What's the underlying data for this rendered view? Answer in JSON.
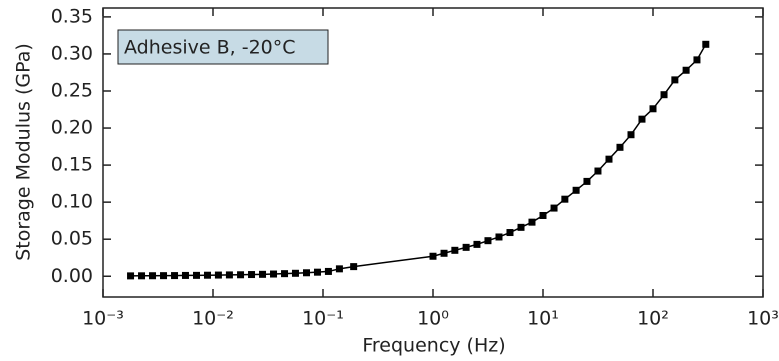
{
  "chart_data": {
    "type": "line",
    "annotation": "Adhesive B, -20°C",
    "x_label": "Frequency (Hz)",
    "y_label": "Storage Modulus (GPa)",
    "x_scale": "log",
    "x": [
      0.00178,
      0.00224,
      0.00282,
      0.00355,
      0.00447,
      0.00562,
      0.00708,
      0.00891,
      0.0112,
      0.0141,
      0.0178,
      0.0224,
      0.0282,
      0.0355,
      0.0447,
      0.0562,
      0.0708,
      0.0891,
      0.112,
      0.141,
      0.19,
      1,
      1.26,
      1.58,
      2,
      2.51,
      3.16,
      3.98,
      5.01,
      6.31,
      7.94,
      10,
      12.6,
      15.8,
      20,
      25.1,
      31.6,
      39.8,
      50.1,
      63.1,
      79.4,
      100,
      126,
      158,
      200,
      251,
      302
    ],
    "series": [
      {
        "color": "#000000",
        "values": [
          0.0005,
          0.0006,
          0.0007,
          0.0008,
          0.0009,
          0.0011,
          0.0012,
          0.0014,
          0.0016,
          0.0018,
          0.002,
          0.0023,
          0.0026,
          0.003,
          0.0035,
          0.004,
          0.0047,
          0.0055,
          0.0065,
          0.01,
          0.013,
          0.027,
          0.031,
          0.035,
          0.039,
          0.043,
          0.048,
          0.053,
          0.059,
          0.066,
          0.073,
          0.082,
          0.092,
          0.104,
          0.116,
          0.128,
          0.142,
          0.158,
          0.174,
          0.191,
          0.212,
          0.226,
          0.245,
          0.265,
          0.278,
          0.292,
          0.313
        ]
      }
    ],
    "xlim": [
      0.001,
      1000
    ],
    "xticks": [
      {
        "value": 0.001,
        "label": "10⁻³"
      },
      {
        "value": 0.01,
        "label": "10⁻²"
      },
      {
        "value": 0.1,
        "label": "10⁻¹"
      },
      {
        "value": 1,
        "label": "10⁰"
      },
      {
        "value": 10,
        "label": "10¹"
      },
      {
        "value": 100,
        "label": "10²"
      },
      {
        "value": 1000,
        "label": "10³"
      }
    ],
    "ylim": [
      -0.028,
      0.362
    ],
    "yticks": [
      {
        "value": 0,
        "label": "0.00"
      },
      {
        "value": 0.05,
        "label": "0.05"
      },
      {
        "value": 0.1,
        "label": "0.10"
      },
      {
        "value": 0.15,
        "label": "0.15"
      },
      {
        "value": 0.2,
        "label": "0.20"
      },
      {
        "value": 0.25,
        "label": "0.25"
      },
      {
        "value": 0.3,
        "label": "0.30"
      },
      {
        "value": 0.35,
        "label": "0.35"
      }
    ],
    "annotation_fill": "#c7dbe5"
  }
}
